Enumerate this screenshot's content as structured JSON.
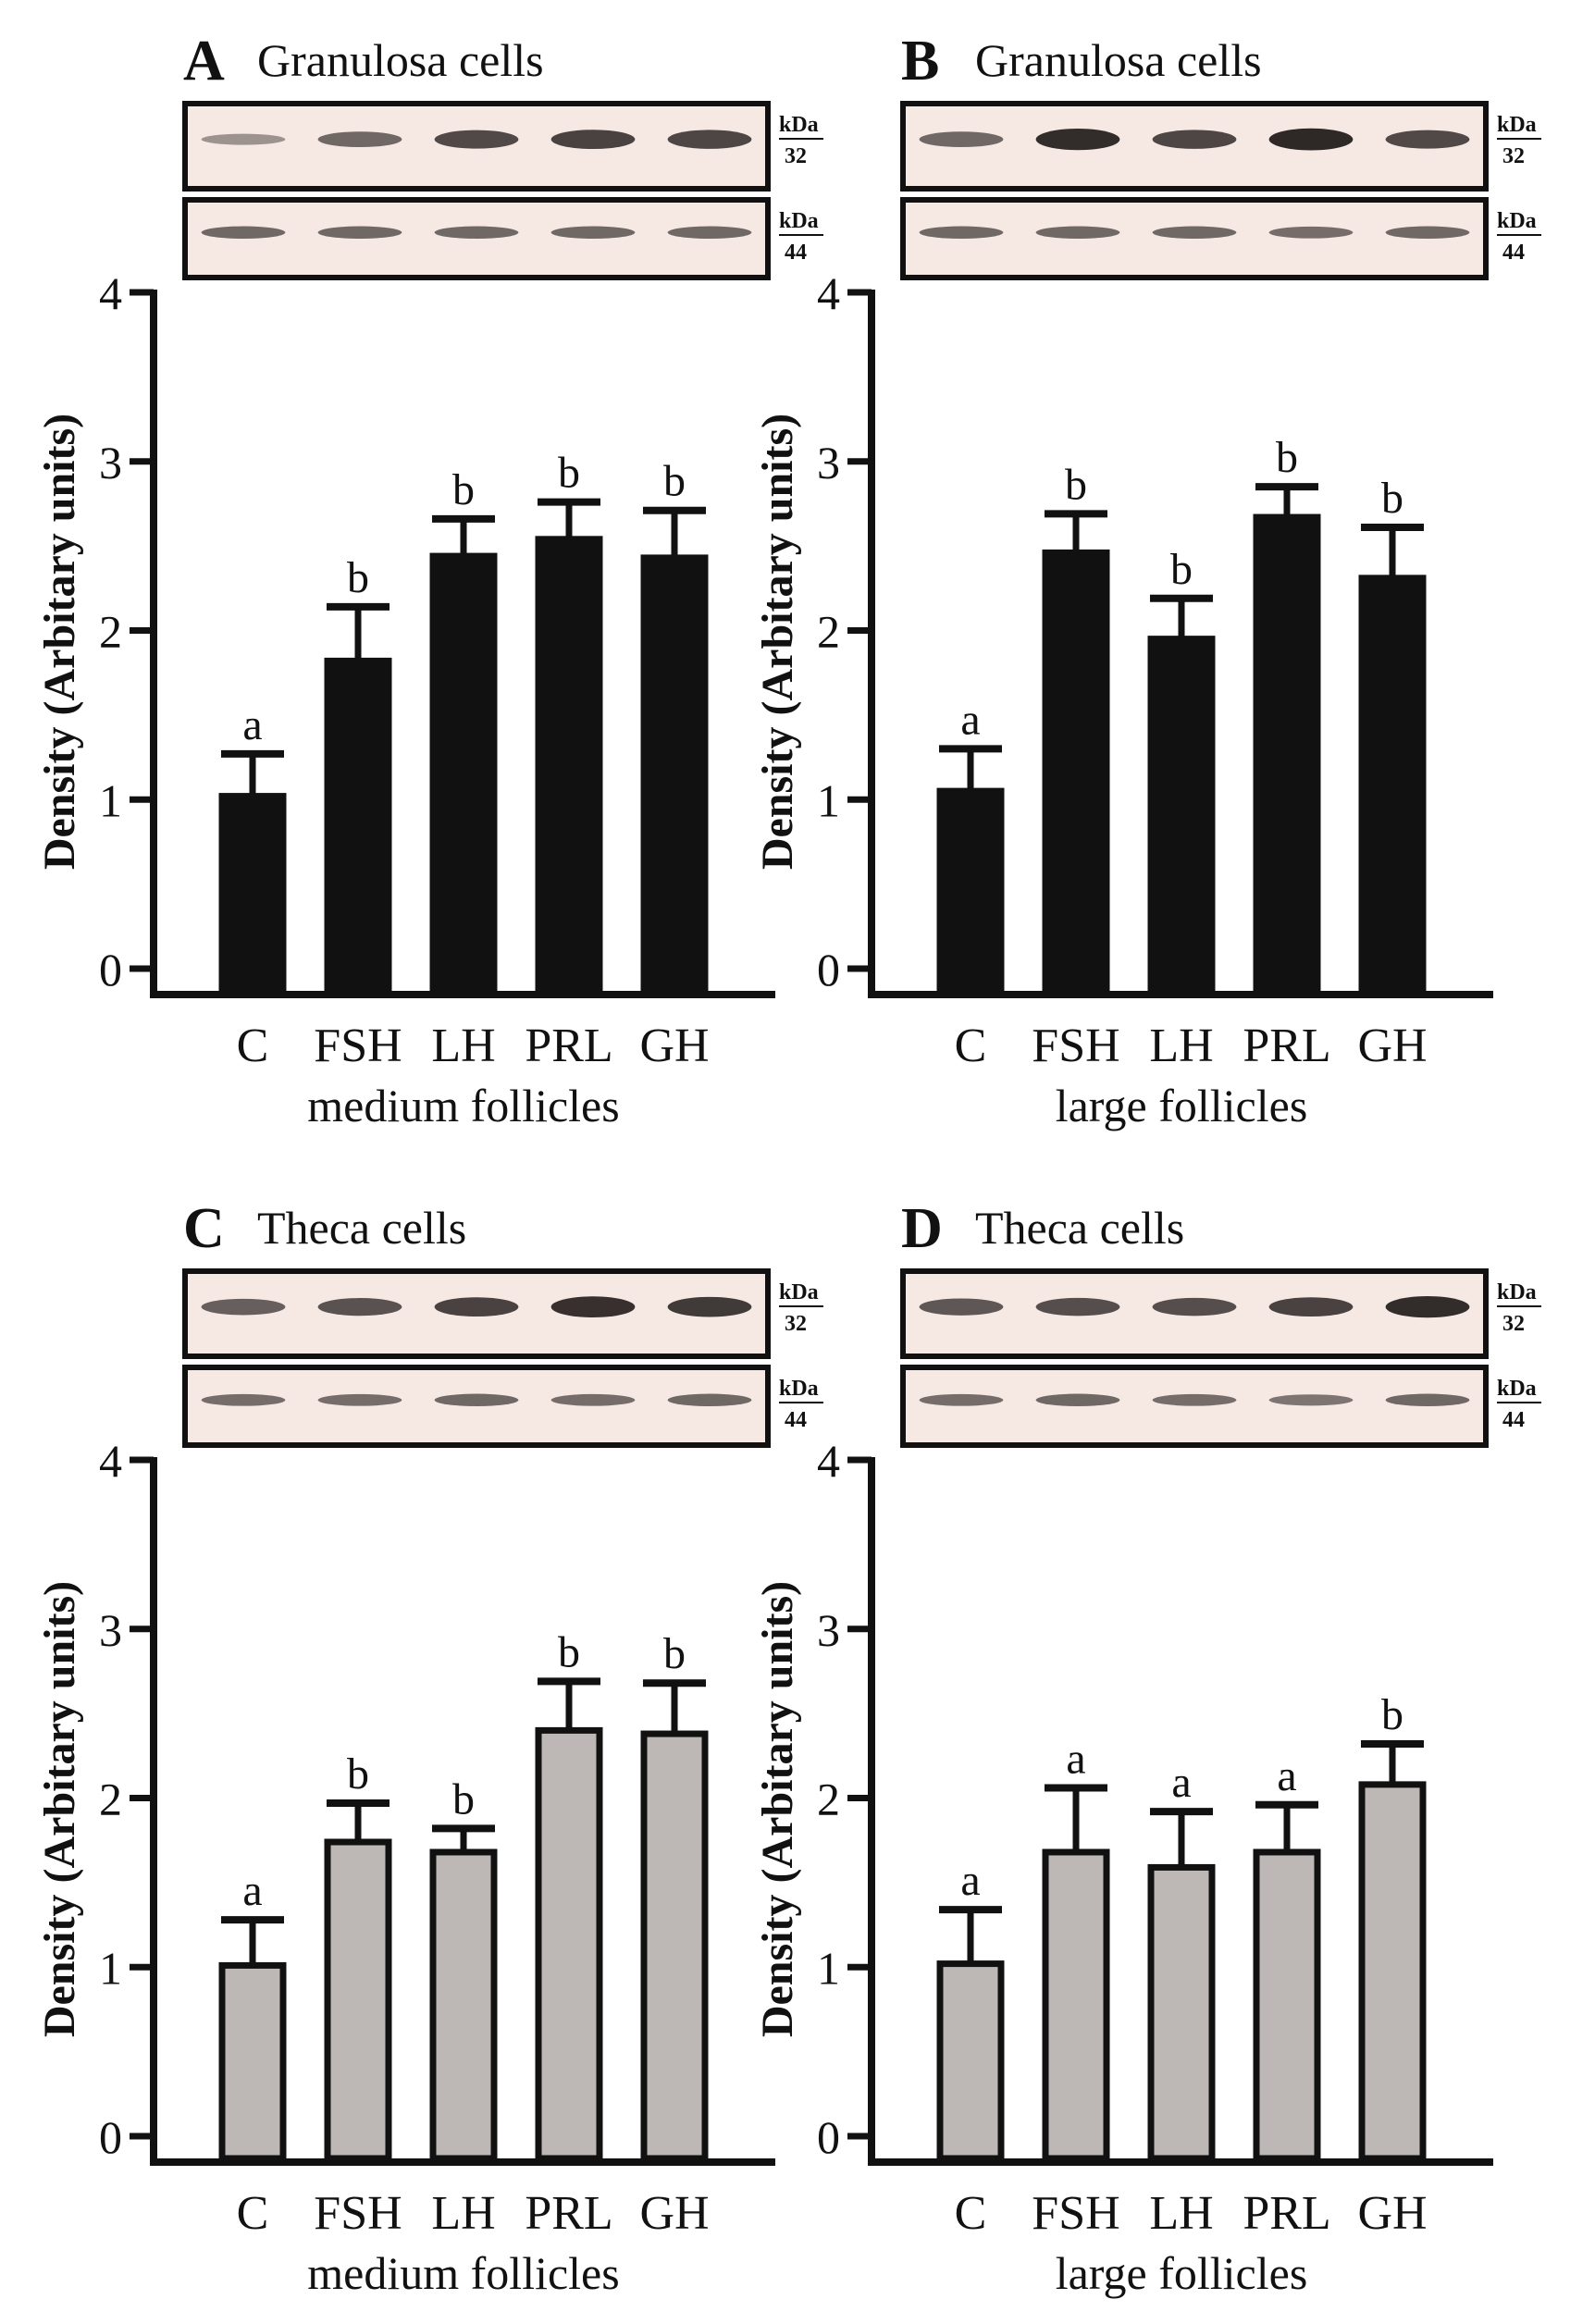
{
  "figure": {
    "ylabel": "Density (Arbitary units)",
    "kda_label": "kDa",
    "band_top_kda": "32",
    "band_bottom_kda": "44",
    "colors": {
      "dark_bar": "#111111",
      "grey_bar": "#bdb8b6",
      "axis": "#111111",
      "blot_bg": "#f6e9e4",
      "band": "#2a2423"
    }
  },
  "chart_data": [
    {
      "panel": "A",
      "title": "Granulosa cells",
      "type": "bar",
      "categories": [
        "C",
        "FSH",
        "LH",
        "PRL",
        "GH"
      ],
      "values": [
        1.02,
        1.82,
        2.44,
        2.54,
        2.43
      ],
      "errors": [
        0.25,
        0.32,
        0.22,
        0.22,
        0.28
      ],
      "labels": [
        "a",
        "b",
        "b",
        "b",
        "b"
      ],
      "xlabel": "medium follicles",
      "ylabel": "Density (Arbitary units)",
      "ylim": [
        0,
        4
      ],
      "yticks": [
        "0",
        "1",
        "2",
        "3",
        "4"
      ],
      "bar_color": "#111111",
      "blot_top_intensity": [
        0.25,
        0.55,
        0.75,
        0.8,
        0.78
      ],
      "blot_bottom_intensity": [
        0.55,
        0.55,
        0.55,
        0.55,
        0.55
      ]
    },
    {
      "panel": "B",
      "title": "Granulosa cells",
      "type": "bar",
      "categories": [
        "C",
        "FSH",
        "LH",
        "PRL",
        "GH"
      ],
      "values": [
        1.05,
        2.46,
        1.95,
        2.67,
        2.31
      ],
      "errors": [
        0.25,
        0.23,
        0.24,
        0.18,
        0.3
      ],
      "labels": [
        "a",
        "b",
        "b",
        "b",
        "b"
      ],
      "xlabel": "large follicles",
      "ylabel": "Density (Arbitary units)",
      "ylim": [
        0,
        4
      ],
      "yticks": [
        "0",
        "1",
        "2",
        "3",
        "4"
      ],
      "bar_color": "#111111",
      "blot_top_intensity": [
        0.55,
        0.95,
        0.78,
        0.98,
        0.75
      ],
      "blot_bottom_intensity": [
        0.55,
        0.55,
        0.55,
        0.5,
        0.55
      ]
    },
    {
      "panel": "C",
      "title": "Theca cells",
      "type": "bar",
      "categories": [
        "C",
        "FSH",
        "LH",
        "PRL",
        "GH"
      ],
      "values": [
        1.01,
        1.74,
        1.68,
        2.4,
        2.38
      ],
      "errors": [
        0.27,
        0.23,
        0.14,
        0.29,
        0.3
      ],
      "labels": [
        "a",
        "b",
        "b",
        "b",
        "b"
      ],
      "xlabel": "medium follicles",
      "ylabel": "Density (Arbitary units)",
      "ylim": [
        0,
        4
      ],
      "yticks": [
        "0",
        "1",
        "2",
        "3",
        "4"
      ],
      "bar_color": "#bdb8b6",
      "blot_top_intensity": [
        0.6,
        0.7,
        0.8,
        0.92,
        0.85
      ],
      "blot_bottom_intensity": [
        0.5,
        0.5,
        0.55,
        0.5,
        0.55
      ]
    },
    {
      "panel": "D",
      "title": "Theca cells",
      "type": "bar",
      "categories": [
        "C",
        "FSH",
        "LH",
        "PRL",
        "GH"
      ],
      "values": [
        1.02,
        1.68,
        1.59,
        1.68,
        2.08
      ],
      "errors": [
        0.32,
        0.38,
        0.33,
        0.28,
        0.24
      ],
      "labels": [
        "a",
        "a",
        "a",
        "a",
        "b"
      ],
      "xlabel": "large follicles",
      "ylabel": "Density (Arbitary units)",
      "ylim": [
        0,
        4
      ],
      "yticks": [
        "0",
        "1",
        "2",
        "3",
        "4"
      ],
      "bar_color": "#bdb8b6",
      "blot_top_intensity": [
        0.65,
        0.72,
        0.72,
        0.8,
        0.95
      ],
      "blot_bottom_intensity": [
        0.5,
        0.55,
        0.5,
        0.45,
        0.55
      ]
    }
  ]
}
